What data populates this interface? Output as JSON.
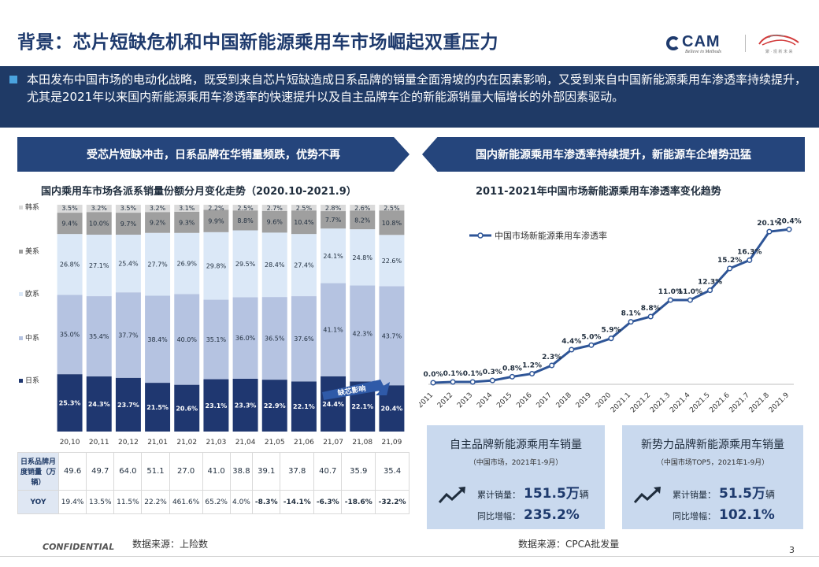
{
  "header": {
    "title": "背景：芯片短缺危机和中国新能源乘用车市场崛起双重压力",
    "logo_text": "CAM",
    "logo_tagline": "Believe in Methods",
    "logo2_tagline": "聚 · 观 新 未 来"
  },
  "intro": {
    "text": "本田发布中国市场的电动化战略，既受到来自芯片短缺造成日系品牌的销量全面滑坡的内在因素影响，又受到来自中国新能源乘用车渗透率持续提升，尤其是2021年以来国内新能源乘用车渗透率的快速提升以及自主品牌车企的新能源销量大幅增长的外部因素驱动。"
  },
  "banners": {
    "left": "受芯片短缺冲击，日系品牌在华销量频跌，优势不再",
    "right": "国内新能源乘用车渗透率持续提升，新能源车企增势迅猛"
  },
  "colors": {
    "navy": "#1f3a66",
    "japan": "#1f3770",
    "china": "#b5c3e1",
    "euro": "#dbe8f7",
    "us": "#9f9f9f",
    "korea": "#dadada",
    "line": "#2e5597"
  },
  "chart_data": [
    {
      "type": "bar",
      "stacked": true,
      "percent": true,
      "title": "国内乘用车市场各派系销量份额分月变化走势（2020.10-2021.9）",
      "categories": [
        "20,10",
        "20,11",
        "20,12",
        "21,01",
        "21,02",
        "21,03",
        "21,04",
        "21,05",
        "21,06",
        "21,07",
        "21,08",
        "21,09"
      ],
      "series": [
        {
          "name": "日系",
          "values": [
            25.3,
            24.3,
            23.7,
            21.5,
            20.6,
            23.1,
            23.3,
            22.9,
            22.1,
            24.4,
            22.1,
            20.4
          ]
        },
        {
          "name": "中系",
          "values": [
            35.0,
            35.4,
            37.7,
            38.4,
            40.0,
            35.1,
            36.0,
            36.5,
            37.6,
            41.1,
            42.3,
            43.7
          ]
        },
        {
          "name": "欧系",
          "values": [
            26.8,
            27.1,
            25.4,
            27.7,
            26.9,
            29.8,
            29.5,
            28.4,
            27.4,
            24.1,
            24.8,
            22.6
          ]
        },
        {
          "name": "美系",
          "values": [
            9.4,
            10.0,
            9.7,
            9.2,
            9.3,
            9.9,
            8.8,
            9.6,
            10.4,
            7.7,
            8.2,
            10.8
          ]
        },
        {
          "name": "韩系",
          "values": [
            3.5,
            3.2,
            3.5,
            3.2,
            3.1,
            2.2,
            2.5,
            2.7,
            2.5,
            2.8,
            2.6,
            2.5
          ]
        }
      ],
      "annotation": "缺芯影响",
      "ylim": [
        0,
        100
      ]
    },
    {
      "type": "line",
      "title": "2011-2021年中国市场新能源乘用车渗透率变化趋势",
      "x": [
        "2011",
        "2012",
        "2013",
        "2014",
        "2015",
        "2016",
        "2017",
        "2018",
        "2019",
        "2020",
        "2021.1",
        "2021.2",
        "2021.3",
        "2021.4",
        "2021.5",
        "2021.6",
        "2021.7",
        "2021.8",
        "2021.9"
      ],
      "series": [
        {
          "name": "中国市场新能源乘用车渗透率",
          "values": [
            0.0,
            0.1,
            0.1,
            0.3,
            0.8,
            1.2,
            2.3,
            4.4,
            5.0,
            5.9,
            8.1,
            8.8,
            11.0,
            11.0,
            12.3,
            15.2,
            16.3,
            20.1,
            20.4
          ]
        }
      ],
      "ylim": [
        0,
        22
      ],
      "unit": "%"
    }
  ],
  "table": {
    "row1_label": "日系品牌月度销量（万辆）",
    "row1_values": [
      "49.6",
      "49.7",
      "64.0",
      "51.1",
      "27.0",
      "41.0",
      "38.8",
      "39.1",
      "37.8",
      "40.7",
      "35.9",
      "35.4"
    ],
    "row2_label": "YOY",
    "row2_values": [
      "19.4%",
      "13.5%",
      "11.5%",
      "22.2%",
      "461.6%",
      "65.2%",
      "4.0%",
      "-8.3%",
      "-14.1%",
      "-6.3%",
      "-18.6%",
      "-32.2%"
    ]
  },
  "cards": {
    "c1": {
      "title": "自主品牌新能源乘用车销量",
      "sub": "（中国市场，2021年1-9月）",
      "label1": "累计销量：",
      "value1": "151.5",
      "unit1": "万",
      "unit1b": "辆",
      "label2": "同比增幅：",
      "value2": "235.2%"
    },
    "c2": {
      "title": "新势力品牌新能源乘用车销量",
      "sub": "（中国市场TOP5，2021年1-9月）",
      "label1": "累计销量：",
      "value1": "51.5",
      "unit1": "万",
      "unit1b": "辆",
      "label2": "同比增幅：",
      "value2": "102.1%"
    }
  },
  "footer": {
    "source_left": "数据来源：上险数",
    "source_right": "数据来源：CPCA批发量",
    "confidential": "CONFIDENTIAL",
    "page": "3"
  }
}
